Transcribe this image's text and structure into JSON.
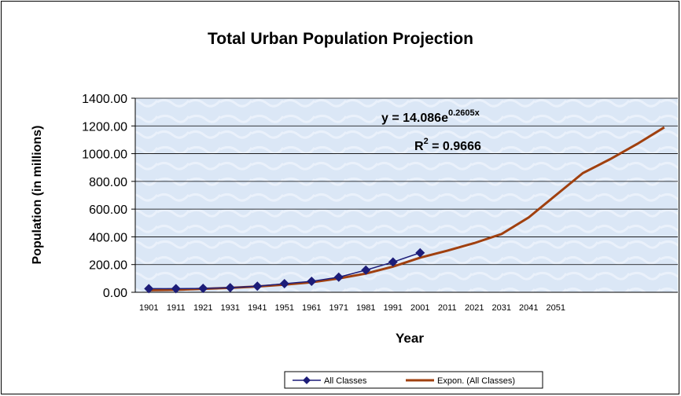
{
  "chart_data": {
    "type": "line",
    "title": "Total Urban Population Projection",
    "x_label": "Year",
    "y_label": "Population (in millions)",
    "categories": [
      "1901",
      "1911",
      "1921",
      "1931",
      "1941",
      "1951",
      "1961",
      "1971",
      "1981",
      "1991",
      "2001",
      "2011",
      "2021",
      "2031",
      "2041",
      "2051",
      null,
      null,
      null,
      null
    ],
    "series": [
      {
        "name": "All Classes",
        "color": "#1c1c78",
        "marker": "diamond",
        "values": [
          26,
          26,
          28,
          33,
          44,
          62,
          79,
          109,
          160,
          218,
          285,
          null,
          null,
          null,
          null,
          null,
          null,
          null,
          null,
          null
        ]
      },
      {
        "name": "Expon. (All Classes)",
        "color": "#a0400f",
        "marker": "none",
        "values": [
          15,
          18,
          25,
          32,
          42,
          55,
          72,
          100,
          135,
          185,
          250,
          300,
          355,
          420,
          540,
          700,
          860,
          960,
          1070,
          1190
        ]
      }
    ],
    "ylim": [
      0,
      1400
    ],
    "yticks": [
      {
        "value": 0,
        "label": "0.00"
      },
      {
        "value": 200,
        "label": "200.00"
      },
      {
        "value": 400,
        "label": "400.00"
      },
      {
        "value": 600,
        "label": "600.00"
      },
      {
        "value": 800,
        "label": "800.00"
      },
      {
        "value": 1000,
        "label": "1000.00"
      },
      {
        "value": 1200,
        "label": "1200.00"
      },
      {
        "value": 1400,
        "label": "1400.00"
      }
    ],
    "grid": true,
    "legend": "bottom",
    "annotations": {
      "equation": {
        "base": "y = 14.086e",
        "exponent": "0.2605x"
      },
      "r_squared": {
        "base": "R",
        "exponent": "2",
        "rest": " = 0.9666"
      }
    }
  }
}
